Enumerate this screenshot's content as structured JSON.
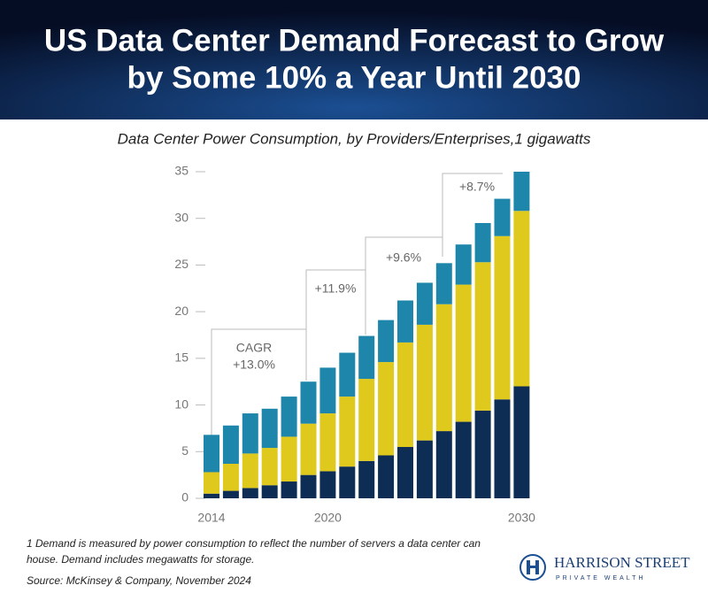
{
  "chart_data": {
    "type": "stacked-bar",
    "title": [
      "US Data Center Demand Forecast to Grow",
      "by Some 10% a Year Until 2030"
    ],
    "subtitle": "Data Center Power Consumption, by Providers/Enterprises,1 gigawatts",
    "categories": [
      "2014",
      null,
      null,
      null,
      null,
      null,
      "2020",
      null,
      null,
      null,
      null,
      null,
      null,
      null,
      null,
      null,
      "2030"
    ],
    "series": [
      {
        "color": "#0d2d55",
        "values": [
          0.5,
          0.8,
          1.1,
          1.4,
          1.8,
          2.5,
          2.9,
          3.4,
          4.0,
          4.6,
          5.5,
          6.2,
          7.2,
          8.2,
          9.4,
          10.6,
          12.0
        ]
      },
      {
        "color": "#dfc91c",
        "values": [
          2.3,
          2.9,
          3.7,
          4.0,
          4.8,
          5.5,
          6.2,
          7.5,
          8.8,
          10.0,
          11.2,
          12.4,
          13.6,
          14.7,
          15.9,
          17.5,
          18.8
        ]
      },
      {
        "color": "#1d86aa",
        "values": [
          4.0,
          4.1,
          4.3,
          4.2,
          4.3,
          4.5,
          4.9,
          4.7,
          4.6,
          4.5,
          4.5,
          4.5,
          4.4,
          4.3,
          4.2,
          4.0,
          4.2
        ]
      }
    ],
    "ylim": [
      0,
      35
    ],
    "yticks": [
      0,
      5,
      10,
      15,
      20,
      25,
      30,
      35
    ],
    "annotations": [
      "CAGR",
      "+13.0%",
      "+11.9%",
      "+9.6%",
      "+8.7%"
    ],
    "footnote": [
      "1 Demand is measured by power consumption to reflect the number of servers a data center can",
      "house. Demand includes megawatts for storage."
    ],
    "source": "Source: McKinsey & Company, November 2024",
    "logo": [
      "HARRISON STREET",
      "PRIVATE WEALTH"
    ]
  }
}
